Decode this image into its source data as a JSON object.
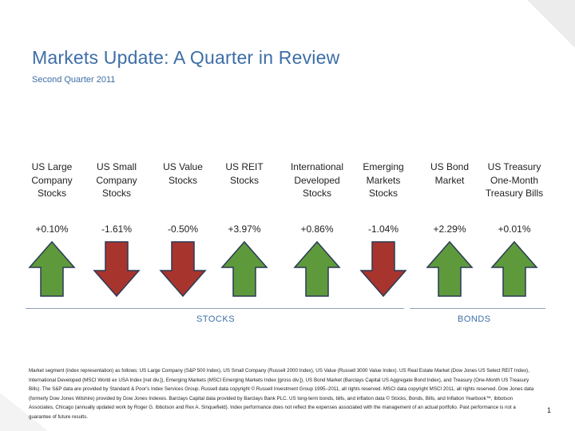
{
  "header": {
    "title": "Markets Update: A Quarter in Review",
    "subtitle": "Second Quarter 2011"
  },
  "colors": {
    "accent": "#3d6ea6",
    "up_arrow": "#5e9a3c",
    "down_arrow": "#a8342e",
    "arrow_outline": "#2a3a55"
  },
  "segments": [
    {
      "label": "US Large Company Stocks",
      "value": "+0.10%",
      "direction": "up"
    },
    {
      "label": "US Small Company Stocks",
      "value": "-1.61%",
      "direction": "down"
    },
    {
      "label": "US Value Stocks",
      "value": "-0.50%",
      "direction": "down"
    },
    {
      "label": "US REIT Stocks",
      "value": "+3.97%",
      "direction": "up"
    },
    {
      "label": "International Developed Stocks",
      "value": "+0.86%",
      "direction": "up"
    },
    {
      "label": "Emerging Markets Stocks",
      "value": "-1.04%",
      "direction": "down"
    },
    {
      "label": "US Bond Market",
      "value": "+2.29%",
      "direction": "up"
    },
    {
      "label": "US Treasury One-Month Treasury Bills",
      "value": "+0.01%",
      "direction": "up"
    }
  ],
  "groups": {
    "stocks": "STOCKS",
    "bonds": "BONDS"
  },
  "footnote": "Market segment (index representation) as follows: US Large Company (S&P 500 Index), US Small Company (Russell 2000 Index), US Value (Russell 3000 Value Index). US Real Estate Market (Dow Jones US Select REIT Index), International Developed (MSCI World ex USA Index [net div.]), Emerging Markets (MSCI Emerging Markets Index [gross div.]), US Bond Market (Barclays Capital US Aggregate Bond Index), and Treasury (One-Month US Treasury Bills). The S&P data are provided by Standard & Poor's Index Services Group. Russell data copyright © Russell Investment Group 1995–2011, all rights reserved. MSCI data copyright MSCI 2011, all rights reserved. Dow Jones data (formerly Dow Jones Wilshire) provided by Dow Jones Indexes. Barclays Capital data provided by Barclays Bank PLC. US long-term bonds, bills, and inflation data © Stocks, Bonds, Bills, and Inflation Yearbook™, Ibbotson Associates, Chicago (annually updated work by Roger G. Ibbotson and Rex A. Sinquefield). Index performance does not reflect the expenses associated with the management of an actual portfolio. Past performance is not a guarantee of future results.",
  "page_number": "1"
}
